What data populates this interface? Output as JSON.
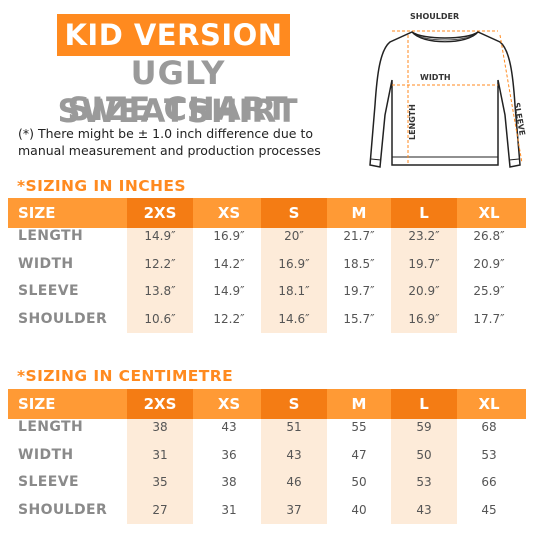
{
  "header": {
    "kid_version": "KID VERSION",
    "title_line1": "UGLY SWEATSHIRT",
    "title_line2": "SIZE CHART",
    "note_line1": "(*) There might be ± 1.0 inch difference due to",
    "note_line2": "manual measurement and production processes"
  },
  "diagram": {
    "shoulder": "SHOULDER",
    "width": "WIDTH",
    "length": "LENGTH",
    "sleeve": "SLEEVE"
  },
  "inches": {
    "title": "*SIZING IN INCHES",
    "columns": [
      "SIZE",
      "2XS",
      "XS",
      "S",
      "M",
      "L",
      "XL"
    ],
    "rows": [
      {
        "label": "LENGTH",
        "values": [
          "14.9″",
          "16.9″",
          "20″",
          "21.7″",
          "23.2″",
          "26.8″"
        ]
      },
      {
        "label": "WIDTH",
        "values": [
          "12.2″",
          "14.2″",
          "16.9″",
          "18.5″",
          "19.7″",
          "20.9″"
        ]
      },
      {
        "label": "SLEEVE",
        "values": [
          "13.8″",
          "14.9″",
          "18.1″",
          "19.7″",
          "20.9″",
          "25.9″"
        ]
      },
      {
        "label": "SHOULDER",
        "values": [
          "10.6″",
          "12.2″",
          "14.6″",
          "15.7″",
          "16.9″",
          "17.7″"
        ]
      }
    ]
  },
  "cm": {
    "title": "*SIZING IN CENTIMETRE",
    "columns": [
      "SIZE",
      "2XS",
      "XS",
      "S",
      "M",
      "L",
      "XL"
    ],
    "rows": [
      {
        "label": "LENGTH",
        "values": [
          "38",
          "43",
          "51",
          "55",
          "59",
          "68"
        ]
      },
      {
        "label": "WIDTH",
        "values": [
          "31",
          "36",
          "43",
          "47",
          "50",
          "53"
        ]
      },
      {
        "label": "SLEEVE",
        "values": [
          "35",
          "38",
          "46",
          "50",
          "53",
          "66"
        ]
      },
      {
        "label": "SHOULDER",
        "values": [
          "27",
          "31",
          "37",
          "40",
          "43",
          "45"
        ]
      }
    ]
  },
  "colors": {
    "accent": "#ff8a1f",
    "header_bar": "#ff9a35",
    "header_dark": "#f47c14",
    "column_tint": "#fdebd9",
    "title_gray": "#9a9a9a"
  }
}
